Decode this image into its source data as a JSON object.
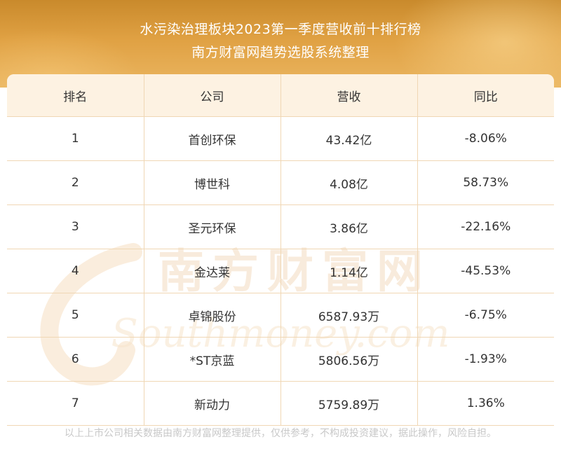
{
  "header": {
    "title": "水污染治理板块2023第一季度营收前十排行榜",
    "subtitle": "南方财富网趋势选股系统整理"
  },
  "table": {
    "columns": [
      "排名",
      "公司",
      "营收",
      "同比"
    ],
    "rows": [
      {
        "rank": "1",
        "company": "首创环保",
        "revenue": "43.42亿",
        "yoy": "-8.06%"
      },
      {
        "rank": "2",
        "company": "博世科",
        "revenue": "4.08亿",
        "yoy": "58.73%"
      },
      {
        "rank": "3",
        "company": "圣元环保",
        "revenue": "3.86亿",
        "yoy": "-22.16%"
      },
      {
        "rank": "4",
        "company": "金达莱",
        "revenue": "1.14亿",
        "yoy": "-45.53%"
      },
      {
        "rank": "5",
        "company": "卓锦股份",
        "revenue": "6587.93万",
        "yoy": "-6.75%"
      },
      {
        "rank": "6",
        "company": "*ST京蓝",
        "revenue": "5806.56万",
        "yoy": "-1.93%"
      },
      {
        "rank": "7",
        "company": "新动力",
        "revenue": "5759.89万",
        "yoy": "1.36%"
      }
    ]
  },
  "watermark": {
    "cn": "南方财富网",
    "en": "Southmoney.com"
  },
  "footer": {
    "disclaimer": "以上上市公司相关数据由南方财富网整理提供，仅供参考，不构成投资建议，据此操作，风险自担。"
  },
  "colors": {
    "header_gold": "#e0a143",
    "table_header_bg": "#fdf2e2",
    "grid_line": "#f0d7b4",
    "watermark": "#f4dcc0"
  }
}
